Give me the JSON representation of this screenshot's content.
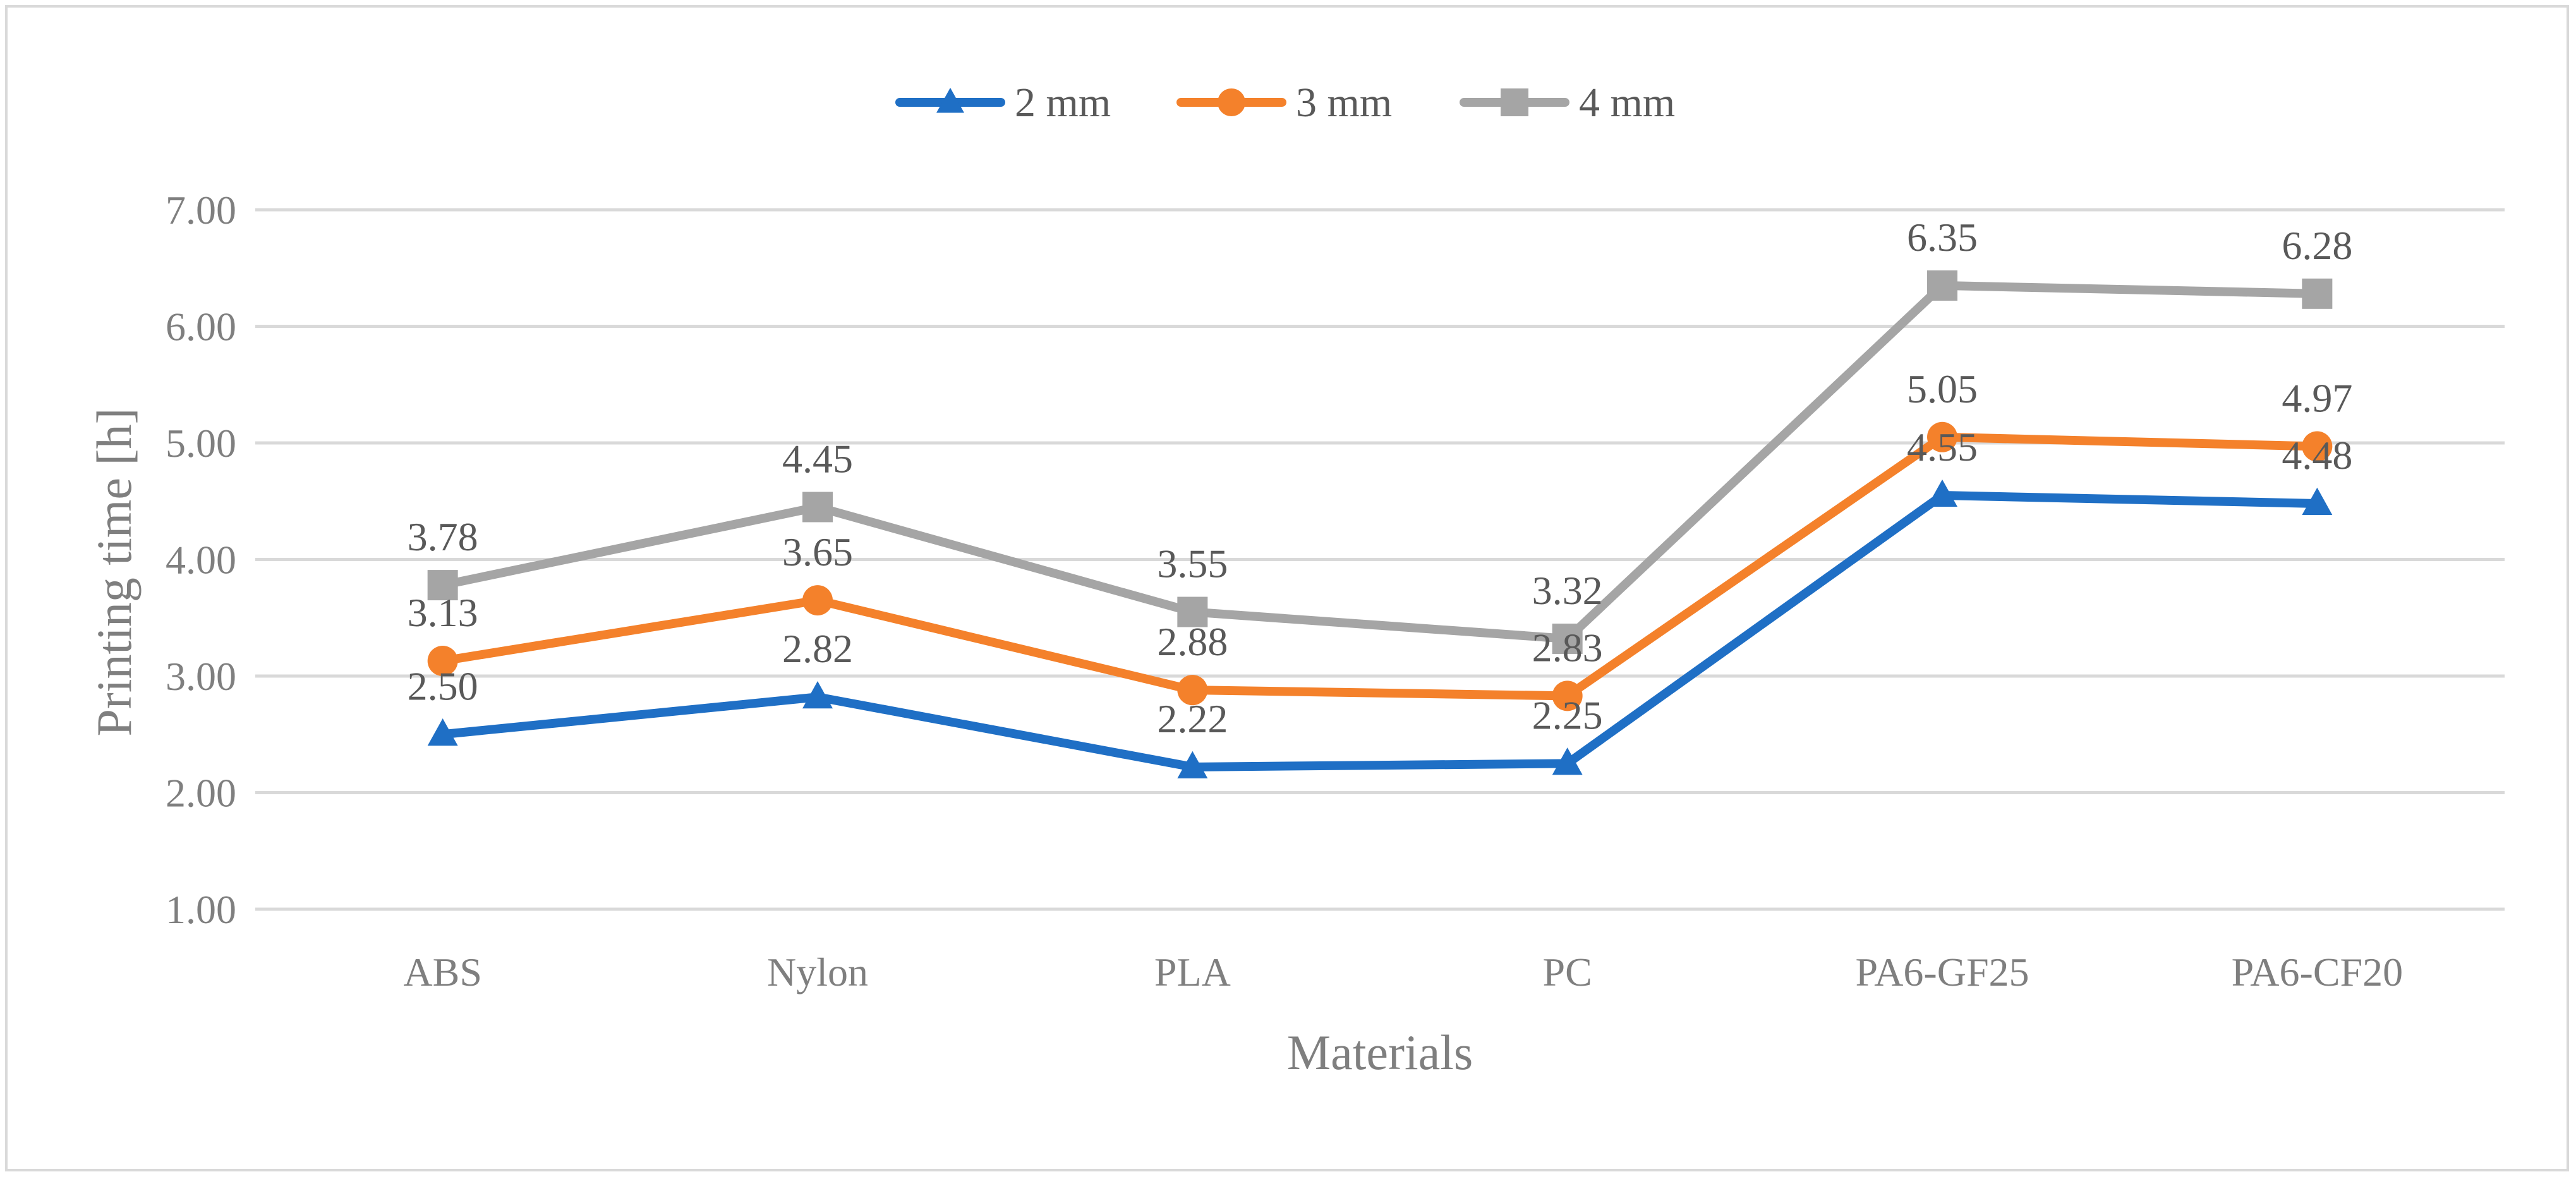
{
  "chart_data": {
    "type": "line",
    "title": "",
    "xlabel": "Materials",
    "ylabel": "Printing time [h]",
    "categories": [
      "ABS",
      "Nylon",
      "PLA",
      "PC",
      "PA6-GF25",
      "PA6-CF20"
    ],
    "ylim": [
      1.0,
      7.0
    ],
    "yticks": [
      1.0,
      2.0,
      3.0,
      4.0,
      5.0,
      6.0,
      7.0
    ],
    "ytick_labels": [
      "1.00",
      "2.00",
      "3.00",
      "4.00",
      "5.00",
      "6.00",
      "7.00"
    ],
    "grid": true,
    "legend_position": "top",
    "series": [
      {
        "name": "2 mm",
        "marker": "triangle",
        "color": "#1f6fc5",
        "values": [
          2.5,
          2.82,
          2.22,
          2.25,
          4.55,
          4.48
        ],
        "labels": [
          "2.50",
          "2.82",
          "2.22",
          "2.25",
          "4.55",
          "4.48"
        ]
      },
      {
        "name": "3 mm",
        "marker": "circle",
        "color": "#f4812b",
        "values": [
          3.13,
          3.65,
          2.88,
          2.83,
          5.05,
          4.97
        ],
        "labels": [
          "3.13",
          "3.65",
          "2.88",
          "2.83",
          "5.05",
          "4.97"
        ]
      },
      {
        "name": "4 mm",
        "marker": "square",
        "color": "#a5a5a5",
        "values": [
          3.78,
          4.45,
          3.55,
          3.32,
          6.35,
          6.28
        ],
        "labels": [
          "3.78",
          "4.45",
          "3.55",
          "3.32",
          "6.35",
          "6.28"
        ]
      }
    ]
  }
}
